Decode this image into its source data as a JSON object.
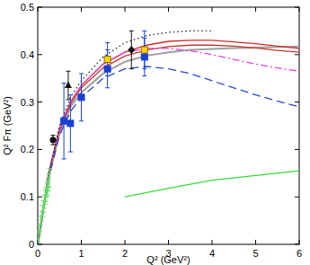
{
  "chart_data": {
    "type": "line",
    "x_label": "Q² (GeV²)",
    "y_label": "Q² Fπ (GeV²)",
    "xlim": [
      0,
      6
    ],
    "ylim": [
      0,
      0.5
    ],
    "xticks": [
      0,
      1,
      2,
      3,
      4,
      5,
      6
    ],
    "yticks": [
      0,
      0.1,
      0.2,
      0.3,
      0.4,
      0.5
    ],
    "grid": false,
    "series": [
      {
        "type": "line",
        "color": "#9e9e9e",
        "line_style": "solid",
        "x": [
          0,
          0.25,
          0.5,
          0.75,
          1,
          1.5,
          2,
          2.5,
          3,
          3.5,
          4,
          4.5,
          5,
          5.5,
          6
        ],
        "values": [
          0,
          0.14,
          0.235,
          0.29,
          0.32,
          0.36,
          0.385,
          0.398,
          0.405,
          0.41,
          0.412,
          0.414,
          0.415,
          0.416,
          0.417
        ]
      },
      {
        "type": "line",
        "color": "#d42a2a",
        "line_style": "solid",
        "x": [
          0,
          0.25,
          0.5,
          0.75,
          1,
          1.5,
          2,
          2.5,
          3,
          3.5,
          4,
          4.5,
          5,
          5.5,
          6
        ],
        "values": [
          0,
          0.15,
          0.245,
          0.3,
          0.335,
          0.38,
          0.405,
          0.42,
          0.428,
          0.43,
          0.43,
          0.427,
          0.423,
          0.418,
          0.413
        ]
      },
      {
        "type": "line",
        "color": "#c0392b",
        "line_style": "solid",
        "x": [
          0,
          0.25,
          0.5,
          0.75,
          1,
          1.5,
          2,
          2.5,
          3,
          3.5,
          4,
          4.5,
          5,
          5.5,
          6
        ],
        "values": [
          0,
          0.15,
          0.24,
          0.295,
          0.33,
          0.372,
          0.397,
          0.41,
          0.417,
          0.42,
          0.42,
          0.418,
          0.414,
          0.409,
          0.405
        ]
      },
      {
        "type": "line",
        "color": "#e040e0",
        "line_style": "dashdot",
        "x": [
          0,
          0.25,
          0.5,
          0.75,
          1,
          1.5,
          2,
          2.5,
          3,
          3.5,
          4,
          4.5,
          5,
          5.5,
          6
        ],
        "values": [
          0,
          0.15,
          0.245,
          0.3,
          0.335,
          0.38,
          0.405,
          0.413,
          0.413,
          0.408,
          0.4,
          0.39,
          0.38,
          0.372,
          0.365
        ]
      },
      {
        "type": "line",
        "color": "#2846c8",
        "line_style": "dashed",
        "x": [
          0,
          0.25,
          0.5,
          0.75,
          1,
          1.5,
          2,
          2.5,
          3,
          3.5,
          4,
          4.5,
          5,
          5.5,
          6
        ],
        "values": [
          0,
          0.14,
          0.23,
          0.28,
          0.31,
          0.35,
          0.37,
          0.375,
          0.37,
          0.36,
          0.345,
          0.33,
          0.315,
          0.302,
          0.29
        ]
      },
      {
        "type": "line",
        "color": "#222222",
        "line_style": "dotted",
        "x": [
          0,
          0.25,
          0.5,
          0.75,
          1,
          1.5,
          2,
          2.5,
          3,
          3.5,
          4
        ],
        "values": [
          0,
          0.15,
          0.25,
          0.31,
          0.345,
          0.395,
          0.425,
          0.44,
          0.447,
          0.45,
          0.45
        ]
      },
      {
        "type": "line",
        "color": "#33dd33",
        "line_style": "solid",
        "x": [
          2,
          3,
          4,
          5,
          6
        ],
        "values": [
          0.1,
          0.118,
          0.135,
          0.145,
          0.155
        ]
      },
      {
        "type": "scatter",
        "color": "#66dd66",
        "marker": "point",
        "x": [
          0.015,
          0.03,
          0.05,
          0.07,
          0.09,
          0.11,
          0.13,
          0.15,
          0.17,
          0.19,
          0.21,
          0.23,
          0.25,
          0.27
        ],
        "values": [
          0.01,
          0.025,
          0.035,
          0.05,
          0.06,
          0.07,
          0.08,
          0.09,
          0.1,
          0.105,
          0.115,
          0.12,
          0.13,
          0.14
        ],
        "errors": [
          0.005,
          0.006,
          0.008,
          0.01,
          0.01,
          0.012,
          0.012,
          0.014,
          0.015,
          0.015,
          0.016,
          0.017,
          0.018,
          0.02
        ]
      },
      {
        "type": "scatter",
        "color": "#1a3fd6",
        "marker": "square",
        "x": [
          0.6,
          0.75,
          1.0,
          1.6,
          2.45
        ],
        "values": [
          0.26,
          0.255,
          0.31,
          0.37,
          0.395
        ],
        "errors": [
          0.08,
          0.06,
          0.05,
          0.04,
          0.04
        ]
      },
      {
        "type": "scatter",
        "color": "#111111",
        "marker": "triangle",
        "x": [
          0.7
        ],
        "values": [
          0.335
        ],
        "errors": [
          0.03
        ]
      },
      {
        "type": "scatter",
        "color": "#111111",
        "marker": "circle",
        "x": [
          0.35
        ],
        "values": [
          0.22
        ],
        "errors": [
          0.01
        ]
      },
      {
        "type": "scatter",
        "color": "#111111",
        "marker": "diamond",
        "x": [
          2.15
        ],
        "values": [
          0.41
        ],
        "errors": [
          0.04
        ]
      },
      {
        "type": "scatter",
        "color": "#ffd700",
        "marker": "square",
        "x": [
          1.6,
          2.45
        ],
        "values": [
          0.39,
          0.41
        ],
        "errors": [
          0.035,
          0.04
        ]
      }
    ]
  }
}
